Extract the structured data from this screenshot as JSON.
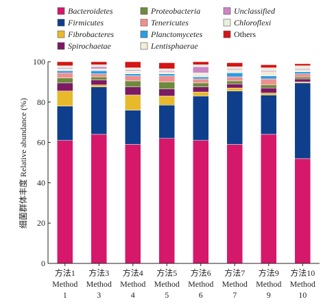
{
  "chart_data": {
    "type": "bar",
    "stacked": true,
    "ylabel": "细菌群体丰度 Relative abundance (%)",
    "ylim": [
      0,
      100
    ],
    "yticks": [
      "0",
      "20",
      "40",
      "60",
      "80",
      "100"
    ],
    "categories": [
      [
        "方法1",
        "Method",
        "1"
      ],
      [
        "方法3",
        "Method",
        "3"
      ],
      [
        "方法4",
        "Method",
        "4"
      ],
      [
        "方法5",
        "Method",
        "5"
      ],
      [
        "方法6",
        "Method",
        "6"
      ],
      [
        "方法7",
        "Method",
        "7"
      ],
      [
        "方法9",
        "Method",
        "9"
      ],
      [
        "方法10",
        "Method",
        "10"
      ]
    ],
    "series": [
      {
        "name": "Bacteroidetes",
        "italic": true,
        "color": "#d6186a",
        "values": [
          61,
          64,
          59,
          62,
          61,
          59,
          64,
          52
        ]
      },
      {
        "name": "Firmicutes",
        "italic": true,
        "color": "#0f3f8c",
        "values": [
          17,
          23.5,
          17,
          16.5,
          22,
          26.5,
          19.5,
          37.5
        ]
      },
      {
        "name": "Fibrobacteres",
        "italic": true,
        "color": "#e8b92b",
        "values": [
          7.5,
          1,
          7.5,
          4.5,
          2,
          1.5,
          1,
          0.5
        ]
      },
      {
        "name": "Spirochaetae",
        "italic": true,
        "color": "#7c1a63",
        "values": [
          4,
          2.5,
          4,
          3.5,
          2.5,
          2,
          2.5,
          1.5
        ]
      },
      {
        "name": "Proteobacteria",
        "italic": true,
        "color": "#6e8b3d",
        "values": [
          2.5,
          1.5,
          3,
          3.5,
          2,
          1.5,
          1.5,
          1
        ]
      },
      {
        "name": "Tenericutes",
        "italic": true,
        "color": "#ef8f8f",
        "values": [
          2.5,
          1.5,
          2.5,
          3,
          2,
          2,
          3,
          1.5
        ]
      },
      {
        "name": "Planctomycetes",
        "italic": true,
        "color": "#2b9de0",
        "values": [
          1,
          1.5,
          1,
          1,
          1,
          2,
          1.5,
          1
        ]
      },
      {
        "name": "Lentisphaerae",
        "italic": true,
        "color": "#f3ecd8",
        "values": [
          1,
          1,
          1.5,
          1,
          2,
          1.5,
          2,
          1
        ]
      },
      {
        "name": "Unclassified",
        "italic": true,
        "color": "#cc85c5",
        "values": [
          0.5,
          1,
          0.5,
          0.5,
          3,
          0.5,
          0.5,
          0.5
        ]
      },
      {
        "name": "Chloroflexi",
        "italic": true,
        "color": "#e9f0de",
        "values": [
          1,
          1,
          1,
          1,
          1,
          1,
          1.5,
          1.5
        ]
      },
      {
        "name": "Others",
        "italic": false,
        "color": "#d41616",
        "values": [
          2,
          1.5,
          3,
          3,
          1.5,
          2,
          1.5,
          1
        ]
      }
    ]
  }
}
